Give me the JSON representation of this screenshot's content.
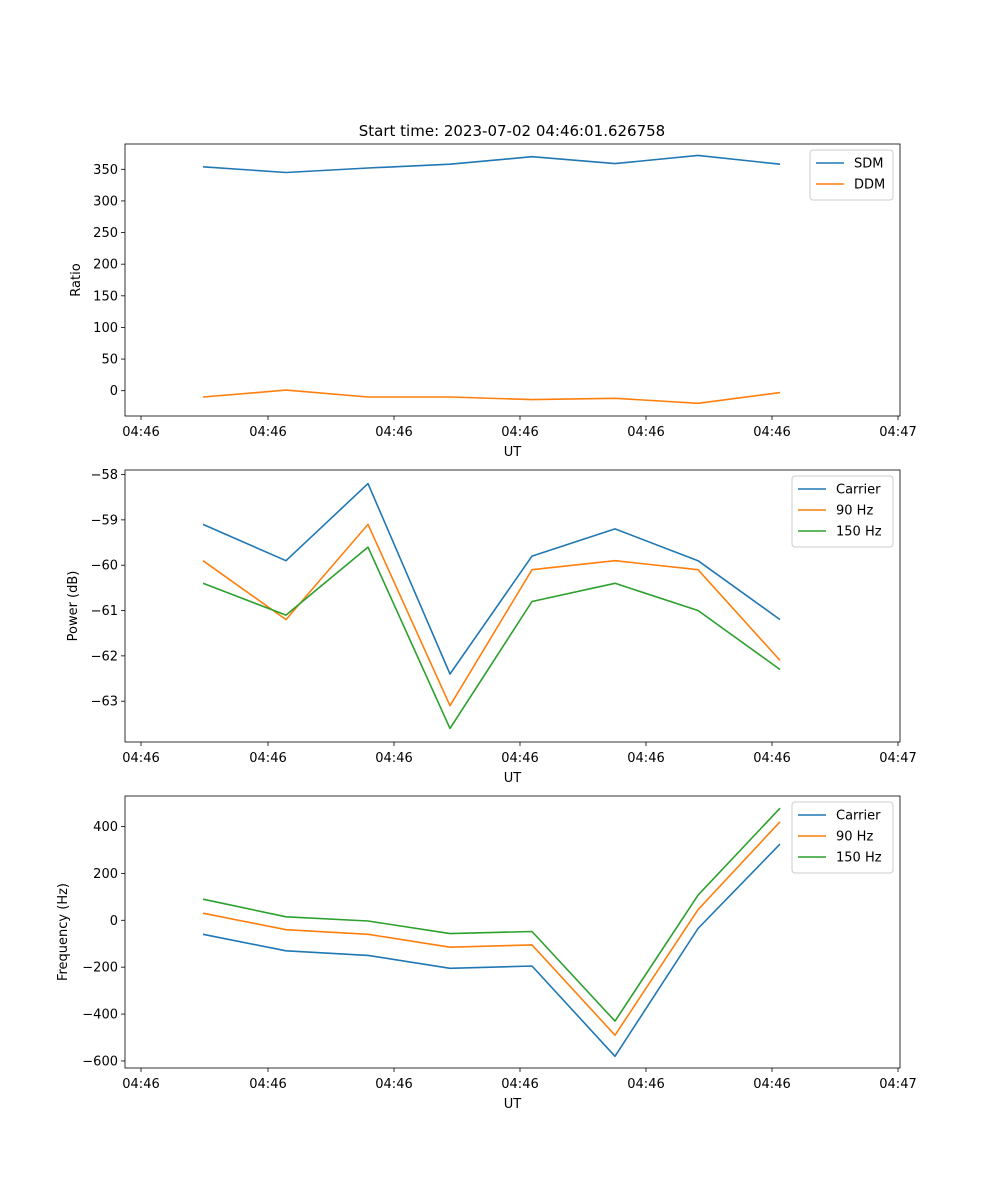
{
  "figure": {
    "title": "Start time: 2023-07-02 04:46:01.626758"
  },
  "chart_data": [
    {
      "type": "line",
      "ylabel": "Ratio",
      "xlabel": "UT",
      "ylim": [
        -40,
        390
      ],
      "yticks": [
        0,
        50,
        100,
        150,
        200,
        250,
        300,
        350
      ],
      "xticks": [
        "04:46",
        "04:46",
        "04:46",
        "04:46",
        "04:46",
        "04:46",
        "04:47"
      ],
      "legend_position": "top-right",
      "series": [
        {
          "name": "SDM",
          "color": "#1f77b4",
          "values": [
            354,
            345,
            352,
            358,
            370,
            359,
            372,
            358
          ]
        },
        {
          "name": "DDM",
          "color": "#ff7f0e",
          "values": [
            -10,
            1,
            -10,
            -10,
            -14,
            -12,
            -20,
            -3
          ]
        }
      ]
    },
    {
      "type": "line",
      "ylabel": "Power (dB)",
      "xlabel": "UT",
      "ylim": [
        -63.9,
        -57.9
      ],
      "yticks": [
        -63,
        -62,
        -61,
        -60,
        -59,
        -58
      ],
      "xticks": [
        "04:46",
        "04:46",
        "04:46",
        "04:46",
        "04:46",
        "04:46",
        "04:47"
      ],
      "legend_position": "top-right",
      "series": [
        {
          "name": "Carrier",
          "color": "#1f77b4",
          "values": [
            -59.1,
            -59.9,
            -58.2,
            -62.4,
            -59.8,
            -59.2,
            -59.9,
            -61.2
          ]
        },
        {
          "name": "90 Hz",
          "color": "#ff7f0e",
          "values": [
            -59.9,
            -61.2,
            -59.1,
            -63.1,
            -60.1,
            -59.9,
            -60.1,
            -62.1
          ]
        },
        {
          "name": "150 Hz",
          "color": "#2ca02c",
          "values": [
            -60.4,
            -61.1,
            -59.6,
            -63.6,
            -60.8,
            -60.4,
            -61.0,
            -62.3
          ]
        }
      ]
    },
    {
      "type": "line",
      "ylabel": "Frequency (Hz)",
      "xlabel": "UT",
      "ylim": [
        -630,
        530
      ],
      "yticks": [
        -600,
        -400,
        -200,
        0,
        200,
        400
      ],
      "xticks": [
        "04:46",
        "04:46",
        "04:46",
        "04:46",
        "04:46",
        "04:46",
        "04:47"
      ],
      "legend_position": "top-right",
      "series": [
        {
          "name": "Carrier",
          "color": "#1f77b4",
          "values": [
            -60,
            -130,
            -150,
            -205,
            -195,
            -580,
            -35,
            325
          ]
        },
        {
          "name": "90 Hz",
          "color": "#ff7f0e",
          "values": [
            30,
            -40,
            -60,
            -115,
            -105,
            -490,
            45,
            420
          ]
        },
        {
          "name": "150 Hz",
          "color": "#2ca02c",
          "values": [
            90,
            15,
            -3,
            -57,
            -48,
            -430,
            107,
            478
          ]
        }
      ]
    }
  ]
}
